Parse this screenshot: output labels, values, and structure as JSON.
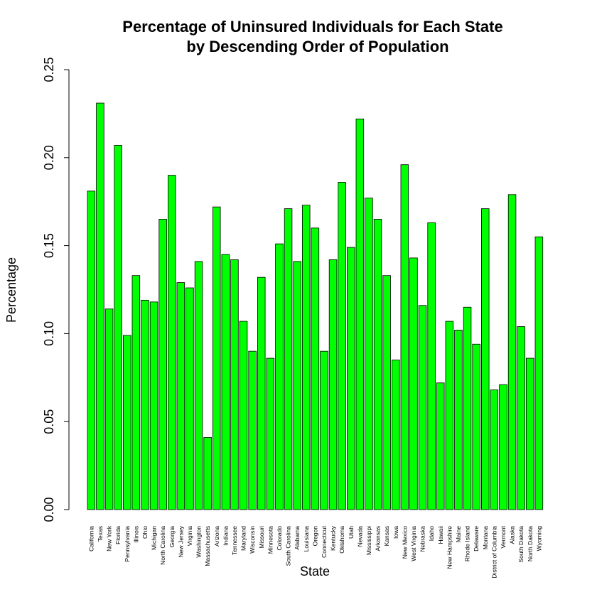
{
  "chart_data": {
    "type": "bar",
    "title": "Percentage of Uninsured Individuals for Each State",
    "subtitle": "by Descending Order of Population",
    "xlabel": "State",
    "ylabel": "Percentage",
    "ylim": [
      0,
      0.25
    ],
    "yticks": [
      "0.00",
      "0.05",
      "0.10",
      "0.15",
      "0.20",
      "0.25"
    ],
    "bar_color": "#00ff00",
    "bar_edge_color": "#000000",
    "grid": false,
    "categories": [
      "California",
      "Texas",
      "New York",
      "Florida",
      "Pennsylvania",
      "Illinois",
      "Ohio",
      "Michigan",
      "North Carolina",
      "Georgia",
      "New Jersey",
      "Virginia",
      "Washington",
      "Massachusetts",
      "Arizona",
      "Indiana",
      "Tennessee",
      "Maryland",
      "Wisconsin",
      "Missouri",
      "Minnesota",
      "Colorado",
      "South Carolina",
      "Alabama",
      "Louisiana",
      "Oregon",
      "Connecticut",
      "Kentucky",
      "Oklahoma",
      "Utah",
      "Nevada",
      "Mississippi",
      "Arkansas",
      "Kansas",
      "Iowa",
      "New Mexico",
      "West Virginia",
      "Nebraska",
      "Idaho",
      "Hawaii",
      "New Hampshire",
      "Maine",
      "Rhode Island",
      "Delaware",
      "Montana",
      "District of Columbia",
      "Vermont",
      "Alaska",
      "South Dakota",
      "North Dakota",
      "Wyoming"
    ],
    "values": [
      0.181,
      0.231,
      0.114,
      0.207,
      0.099,
      0.133,
      0.119,
      0.118,
      0.165,
      0.19,
      0.129,
      0.126,
      0.141,
      0.041,
      0.172,
      0.145,
      0.142,
      0.107,
      0.09,
      0.132,
      0.086,
      0.151,
      0.171,
      0.141,
      0.173,
      0.16,
      0.09,
      0.142,
      0.186,
      0.149,
      0.222,
      0.177,
      0.165,
      0.133,
      0.085,
      0.196,
      0.143,
      0.116,
      0.163,
      0.072,
      0.107,
      0.102,
      0.115,
      0.094,
      0.171,
      0.068,
      0.071,
      0.179,
      0.104,
      0.086,
      0.155
    ]
  }
}
